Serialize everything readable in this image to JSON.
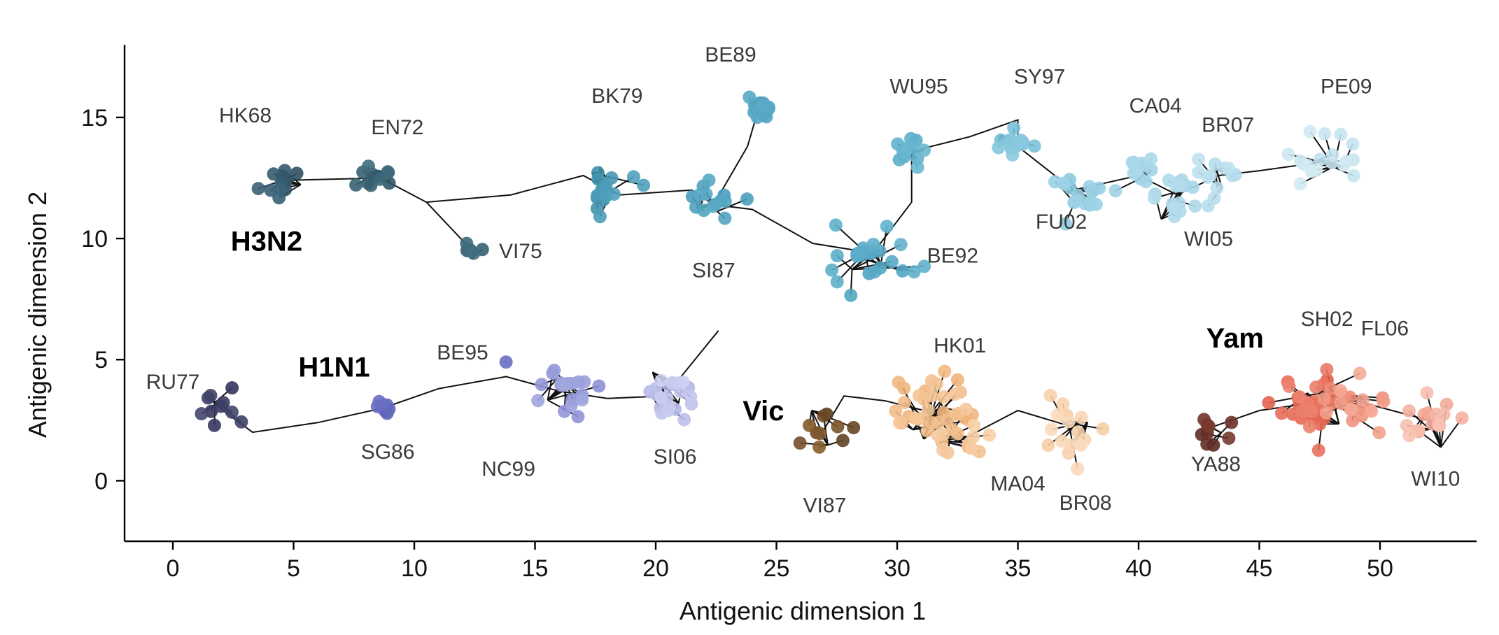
{
  "chart_data": {
    "type": "scatter",
    "xlabel": "Antigenic dimension 1",
    "ylabel": "Antigenic dimension 2",
    "xlim": [
      -2,
      54
    ],
    "ylim": [
      -2.5,
      18
    ],
    "xticks": [
      0,
      5,
      10,
      15,
      20,
      25,
      30,
      35,
      40,
      45,
      50
    ],
    "yticks": [
      0,
      5,
      10,
      15
    ],
    "grid": false,
    "lineage_labels": [
      {
        "text": "H3N2",
        "x": 2.4,
        "y": 9.5
      },
      {
        "text": "H1N1",
        "x": 5.2,
        "y": 4.3
      },
      {
        "text": "Vic",
        "x": 23.6,
        "y": 2.5
      },
      {
        "text": "Yam",
        "x": 42.8,
        "y": 5.5
      }
    ],
    "series": [
      {
        "name": "H3N2",
        "clusters": [
          {
            "label": "HK68",
            "x": 4.5,
            "y": 12.4,
            "spread": 0.8,
            "n": 14,
            "label_x": 3.0,
            "label_y": 14.8,
            "color_from": "#2b4d5e",
            "color_to": "#3b6478"
          },
          {
            "label": "EN72",
            "x": 8.6,
            "y": 12.5,
            "spread": 0.7,
            "n": 12,
            "label_x": 9.3,
            "label_y": 14.3,
            "color_from": "#2f5666",
            "color_to": "#3f6b7c"
          },
          {
            "label": "VI75",
            "x": 12.3,
            "y": 9.6,
            "spread": 0.5,
            "n": 8,
            "label_x": 14.4,
            "label_y": 9.2,
            "color_from": "#33606f",
            "color_to": "#426e80"
          },
          {
            "label": "BK79",
            "x": 17.8,
            "y": 12.0,
            "spread": 1.3,
            "n": 16,
            "label_x": 18.4,
            "label_y": 15.6,
            "color_from": "#3e8ea8",
            "color_to": "#52a3bf"
          },
          {
            "label": "SI87",
            "x": 22.4,
            "y": 11.4,
            "spread": 1.0,
            "n": 14,
            "label_x": 22.4,
            "label_y": 8.4,
            "color_from": "#4a9cba",
            "color_to": "#5aabc7"
          },
          {
            "label": "BE89",
            "x": 24.3,
            "y": 15.5,
            "spread": 0.6,
            "n": 16,
            "label_x": 23.1,
            "label_y": 17.3,
            "color_from": "#4a9cba",
            "color_to": "#5aabc7"
          },
          {
            "label": "BE92",
            "x": 29.0,
            "y": 9.4,
            "spread": 1.4,
            "n": 24,
            "label_x": 32.3,
            "label_y": 9.0,
            "color_from": "#52a5c2",
            "color_to": "#62b2cd"
          },
          {
            "label": "WU95",
            "x": 30.6,
            "y": 13.6,
            "spread": 0.7,
            "n": 12,
            "label_x": 30.9,
            "label_y": 16.0,
            "color_from": "#5aadc9",
            "color_to": "#6bb8d2"
          },
          {
            "label": "SY97",
            "x": 35.0,
            "y": 13.8,
            "spread": 1.0,
            "n": 14,
            "label_x": 35.9,
            "label_y": 16.4,
            "color_from": "#78c0d9",
            "color_to": "#8bc9de"
          },
          {
            "label": "FU02",
            "x": 37.3,
            "y": 12.0,
            "spread": 1.0,
            "n": 16,
            "label_x": 36.8,
            "label_y": 10.4,
            "color_from": "#8ccbe0",
            "color_to": "#9ed2e5"
          },
          {
            "label": "CA04",
            "x": 40.0,
            "y": 12.6,
            "spread": 0.9,
            "n": 12,
            "label_x": 40.7,
            "label_y": 15.2,
            "color_from": "#9ed2e5",
            "color_to": "#acd9ea"
          },
          {
            "label": "WI05",
            "x": 41.6,
            "y": 11.8,
            "spread": 1.0,
            "n": 16,
            "label_x": 42.9,
            "label_y": 9.7,
            "color_from": "#a8d6e8",
            "color_to": "#b4dcec"
          },
          {
            "label": "BR07",
            "x": 43.3,
            "y": 12.6,
            "spread": 0.9,
            "n": 12,
            "label_x": 43.7,
            "label_y": 14.4,
            "color_from": "#b4dcec",
            "color_to": "#c0e2ef"
          },
          {
            "label": "PE09",
            "x": 47.9,
            "y": 13.2,
            "spread": 1.3,
            "n": 18,
            "label_x": 48.6,
            "label_y": 16.0,
            "color_from": "#c2e3ef",
            "color_to": "#d4ebf4"
          }
        ]
      },
      {
        "name": "H1N1",
        "clusters": [
          {
            "label": "RU77",
            "x": 1.8,
            "y": 3.1,
            "spread": 1.0,
            "n": 10,
            "label_x": 0.0,
            "label_y": 3.8,
            "color_from": "#34355c",
            "color_to": "#45476e"
          },
          {
            "label": "SG86",
            "x": 8.7,
            "y": 3.0,
            "spread": 0.4,
            "n": 7,
            "label_x": 8.9,
            "label_y": 0.9,
            "color_from": "#5b60b8",
            "color_to": "#6a6fc2"
          },
          {
            "label": "BE95",
            "x": 13.8,
            "y": 4.9,
            "spread": 0.1,
            "n": 1,
            "label_x": 12.0,
            "label_y": 5.0,
            "color_from": "#6a6fc2",
            "color_to": "#6a6fc2"
          },
          {
            "label": "NC99",
            "x": 16.0,
            "y": 3.7,
            "spread": 1.1,
            "n": 20,
            "label_x": 13.9,
            "label_y": 0.2,
            "color_from": "#8d91d6",
            "color_to": "#a3a7df"
          },
          {
            "label": "SI06",
            "x": 20.4,
            "y": 3.5,
            "spread": 1.3,
            "n": 22,
            "label_x": 20.8,
            "label_y": 0.7,
            "color_from": "#b0b4e6",
            "color_to": "#cdd0f0"
          }
        ]
      },
      {
        "name": "Vic",
        "clusters": [
          {
            "label": "VI87",
            "x": 26.9,
            "y": 2.0,
            "spread": 1.1,
            "n": 10,
            "label_x": 27.0,
            "label_y": -1.3,
            "color_from": "#5c3f24",
            "color_to": "#8a5d2e"
          },
          {
            "label": "HK01",
            "x": 31.5,
            "y": 2.8,
            "spread": 1.6,
            "n": 34,
            "label_x": 32.6,
            "label_y": 5.3,
            "color_from": "#f0b27a",
            "color_to": "#f5c89a"
          },
          {
            "label": "MA04",
            "x": 32.5,
            "y": 1.6,
            "spread": 1.2,
            "n": 14,
            "label_x": 35.0,
            "label_y": -0.4,
            "color_from": "#f3bd8a",
            "color_to": "#f7d1aa"
          },
          {
            "label": "BR08",
            "x": 37.0,
            "y": 2.3,
            "spread": 1.2,
            "n": 18,
            "label_x": 37.8,
            "label_y": -1.2,
            "color_from": "#f6cda4",
            "color_to": "#fadcc0"
          }
        ]
      },
      {
        "name": "Yam",
        "clusters": [
          {
            "label": "YA88",
            "x": 43.0,
            "y": 2.2,
            "spread": 1.0,
            "n": 9,
            "label_x": 43.2,
            "label_y": 0.4,
            "color_from": "#5a2a24",
            "color_to": "#7a3a2e"
          },
          {
            "label": "SH02",
            "x": 47.1,
            "y": 3.2,
            "spread": 1.4,
            "n": 30,
            "label_x": 47.8,
            "label_y": 6.4,
            "color_from": "#e2614c",
            "color_to": "#ed8470"
          },
          {
            "label": "FL06",
            "x": 49.0,
            "y": 3.3,
            "spread": 1.3,
            "n": 20,
            "label_x": 50.2,
            "label_y": 6.0,
            "color_from": "#ee8a74",
            "color_to": "#f5ab98"
          },
          {
            "label": "WI10",
            "x": 52.0,
            "y": 2.5,
            "spread": 1.0,
            "n": 16,
            "label_x": 52.3,
            "label_y": -0.2,
            "color_from": "#f3a592",
            "color_to": "#f8c4b6"
          }
        ]
      }
    ],
    "backbones": [
      [
        [
          4.5,
          12.4
        ],
        [
          8.6,
          12.5
        ],
        [
          10.5,
          11.5
        ],
        [
          14.0,
          11.8
        ],
        [
          17.0,
          12.6
        ],
        [
          18.5,
          11.8
        ],
        [
          21.5,
          12.0
        ],
        [
          22.4,
          11.4
        ],
        [
          24.0,
          11.2
        ],
        [
          26.5,
          9.8
        ],
        [
          29.0,
          9.4
        ],
        [
          30.6,
          11.5
        ],
        [
          30.6,
          13.6
        ],
        [
          33.0,
          14.2
        ],
        [
          35.0,
          14.9
        ],
        [
          35.0,
          13.8
        ],
        [
          37.3,
          12.0
        ],
        [
          40.0,
          12.6
        ],
        [
          41.6,
          11.8
        ],
        [
          43.3,
          12.6
        ],
        [
          45.0,
          12.8
        ],
        [
          47.9,
          13.2
        ]
      ],
      [
        [
          10.5,
          11.5
        ],
        [
          12.3,
          9.6
        ]
      ],
      [
        [
          22.4,
          11.4
        ],
        [
          23.8,
          13.8
        ],
        [
          24.3,
          15.5
        ]
      ],
      [
        [
          1.8,
          3.1
        ],
        [
          3.3,
          2.0
        ],
        [
          6.0,
          2.4
        ],
        [
          8.7,
          3.0
        ],
        [
          11.0,
          3.8
        ],
        [
          13.8,
          4.3
        ],
        [
          16.0,
          3.7
        ],
        [
          18.0,
          3.4
        ],
        [
          20.4,
          3.5
        ],
        [
          22.6,
          6.2
        ]
      ],
      [
        [
          26.9,
          2.0
        ],
        [
          27.8,
          3.5
        ],
        [
          29.5,
          3.3
        ],
        [
          31.5,
          2.8
        ],
        [
          32.5,
          1.6
        ],
        [
          35.0,
          2.9
        ],
        [
          37.0,
          2.3
        ]
      ],
      [
        [
          43.0,
          2.2
        ],
        [
          45.0,
          2.9
        ],
        [
          47.1,
          3.2
        ],
        [
          49.0,
          3.3
        ],
        [
          52.0,
          2.5
        ]
      ]
    ]
  }
}
